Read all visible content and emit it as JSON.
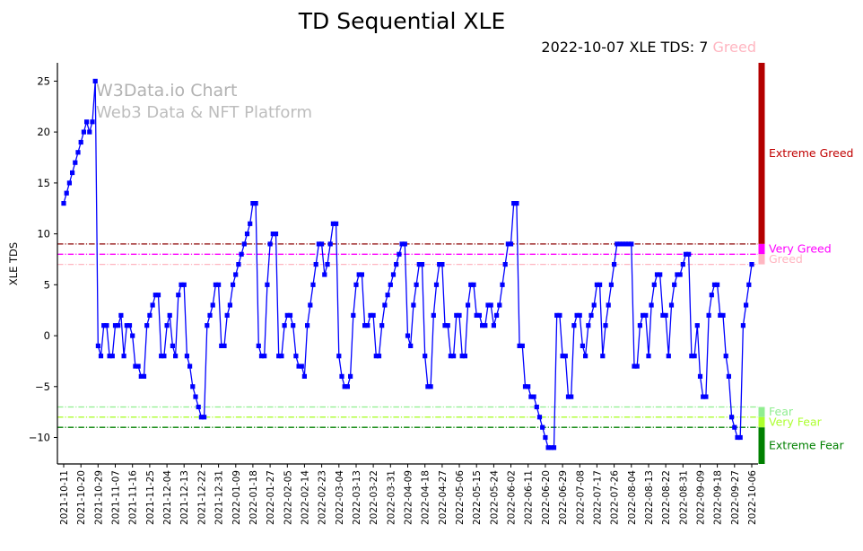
{
  "title": "TD Sequential XLE",
  "annotation": {
    "prefix": "2022-10-07 XLE TDS: 7 ",
    "status": "Greed",
    "status_color": "#ffb6c1"
  },
  "watermark": {
    "line1": "W3Data.io Chart",
    "line2": "Web3 Data & NFT Platform"
  },
  "chart_data": {
    "type": "line",
    "title": "TD Sequential XLE",
    "xlabel": "",
    "ylabel": "XLE TDS",
    "ylim": [
      -12.6,
      26.8
    ],
    "yticks": [
      25,
      20,
      15,
      10,
      5,
      0,
      -5,
      -10
    ],
    "grid": false,
    "legend": "none",
    "x_tick_interval": 6,
    "x_tick_labels": [
      "2021-10-11",
      "2021-10-20",
      "2021-10-29",
      "2021-11-07",
      "2021-11-16",
      "2021-11-25",
      "2021-12-04",
      "2021-12-13",
      "2021-12-22",
      "2021-12-31",
      "2022-01-09",
      "2022-01-18",
      "2022-01-27",
      "2022-02-05",
      "2022-02-14",
      "2022-02-23",
      "2022-03-04",
      "2022-03-13",
      "2022-03-22",
      "2022-03-31",
      "2022-04-09",
      "2022-04-18",
      "2022-04-27",
      "2022-05-06",
      "2022-05-15",
      "2022-05-24",
      "2022-06-02",
      "2022-06-11",
      "2022-06-20",
      "2022-06-29",
      "2022-07-08",
      "2022-07-17",
      "2022-07-26",
      "2022-08-04",
      "2022-08-13",
      "2022-08-22",
      "2022-08-31",
      "2022-09-09",
      "2022-09-18",
      "2022-09-27",
      "2022-10-06"
    ],
    "series": [
      {
        "name": "XLE TDS",
        "color": "#0000ff",
        "marker": "square",
        "values": [
          13,
          14,
          15,
          16,
          17,
          18,
          19,
          20,
          21,
          20,
          21,
          25,
          -1,
          -2,
          1,
          1,
          -2,
          -2,
          1,
          1,
          2,
          -2,
          1,
          1,
          0,
          -3,
          -3,
          -4,
          -4,
          1,
          2,
          3,
          4,
          4,
          -2,
          -2,
          1,
          2,
          -1,
          -2,
          4,
          5,
          5,
          -2,
          -3,
          -5,
          -6,
          -7,
          -8,
          -8,
          1,
          2,
          3,
          5,
          5,
          -1,
          -1,
          2,
          3,
          5,
          6,
          7,
          8,
          9,
          10,
          11,
          13,
          13,
          -1,
          -2,
          -2,
          5,
          9,
          10,
          10,
          -2,
          -2,
          1,
          2,
          2,
          1,
          -2,
          -3,
          -3,
          -4,
          1,
          3,
          5,
          7,
          9,
          9,
          6,
          7,
          9,
          11,
          11,
          -2,
          -4,
          -5,
          -5,
          -4,
          2,
          5,
          6,
          6,
          1,
          1,
          2,
          2,
          -2,
          -2,
          1,
          3,
          4,
          5,
          6,
          7,
          8,
          9,
          9,
          0,
          -1,
          3,
          5,
          7,
          7,
          -2,
          -5,
          -5,
          2,
          5,
          7,
          7,
          1,
          1,
          -2,
          -2,
          2,
          2,
          -2,
          -2,
          3,
          5,
          5,
          2,
          2,
          1,
          1,
          3,
          3,
          1,
          2,
          3,
          5,
          7,
          9,
          9,
          13,
          13,
          -1,
          -1,
          -5,
          -5,
          -6,
          -6,
          -7,
          -8,
          -9,
          -10,
          -11,
          -11,
          -11,
          2,
          2,
          -2,
          -2,
          -6,
          -6,
          1,
          2,
          2,
          -1,
          -2,
          1,
          2,
          3,
          5,
          5,
          -2,
          1,
          3,
          5,
          7,
          9,
          9,
          9,
          9,
          9,
          9,
          -3,
          -3,
          1,
          2,
          2,
          -2,
          3,
          5,
          6,
          6,
          2,
          2,
          -2,
          3,
          5,
          6,
          6,
          7,
          8,
          8,
          -2,
          -2,
          1,
          -4,
          -6,
          -6,
          2,
          4,
          5,
          5,
          2,
          2,
          -2,
          -4,
          -8,
          -9,
          -10,
          -10,
          1,
          3,
          5,
          7
        ]
      }
    ],
    "thresholds": [
      {
        "value": 9,
        "color": "#8b0000",
        "style": "dashdot"
      },
      {
        "value": 8,
        "color": "#ff00ff",
        "style": "dashdot"
      },
      {
        "value": 7,
        "color": "#ffb6c1",
        "style": "dashdot"
      },
      {
        "value": -7,
        "color": "#90ee90",
        "style": "dashdot"
      },
      {
        "value": -8,
        "color": "#adff2f",
        "style": "dashdot"
      },
      {
        "value": -9,
        "color": "#008000",
        "style": "dashdot"
      }
    ],
    "bands": [
      {
        "from": 9,
        "to": 26.8,
        "color": "#b30000",
        "label": "Extreme Greed",
        "label_color": "#c00000"
      },
      {
        "from": 8,
        "to": 9,
        "color": "#ff00ff",
        "label": "Very Greed",
        "label_color": "#ff00ff"
      },
      {
        "from": 7,
        "to": 8,
        "color": "#ffb6c1",
        "label": "Greed",
        "label_color": "#ffb6c1"
      },
      {
        "from": -7,
        "to": -8,
        "color": "#90ee90",
        "label": "Fear",
        "label_color": "#90ee90"
      },
      {
        "from": -8,
        "to": -9,
        "color": "#adff2f",
        "label": "Very Fear",
        "label_color": "#adff2f"
      },
      {
        "from": -9,
        "to": -12.6,
        "color": "#008000",
        "label": "Extreme Fear",
        "label_color": "#008000"
      }
    ]
  }
}
